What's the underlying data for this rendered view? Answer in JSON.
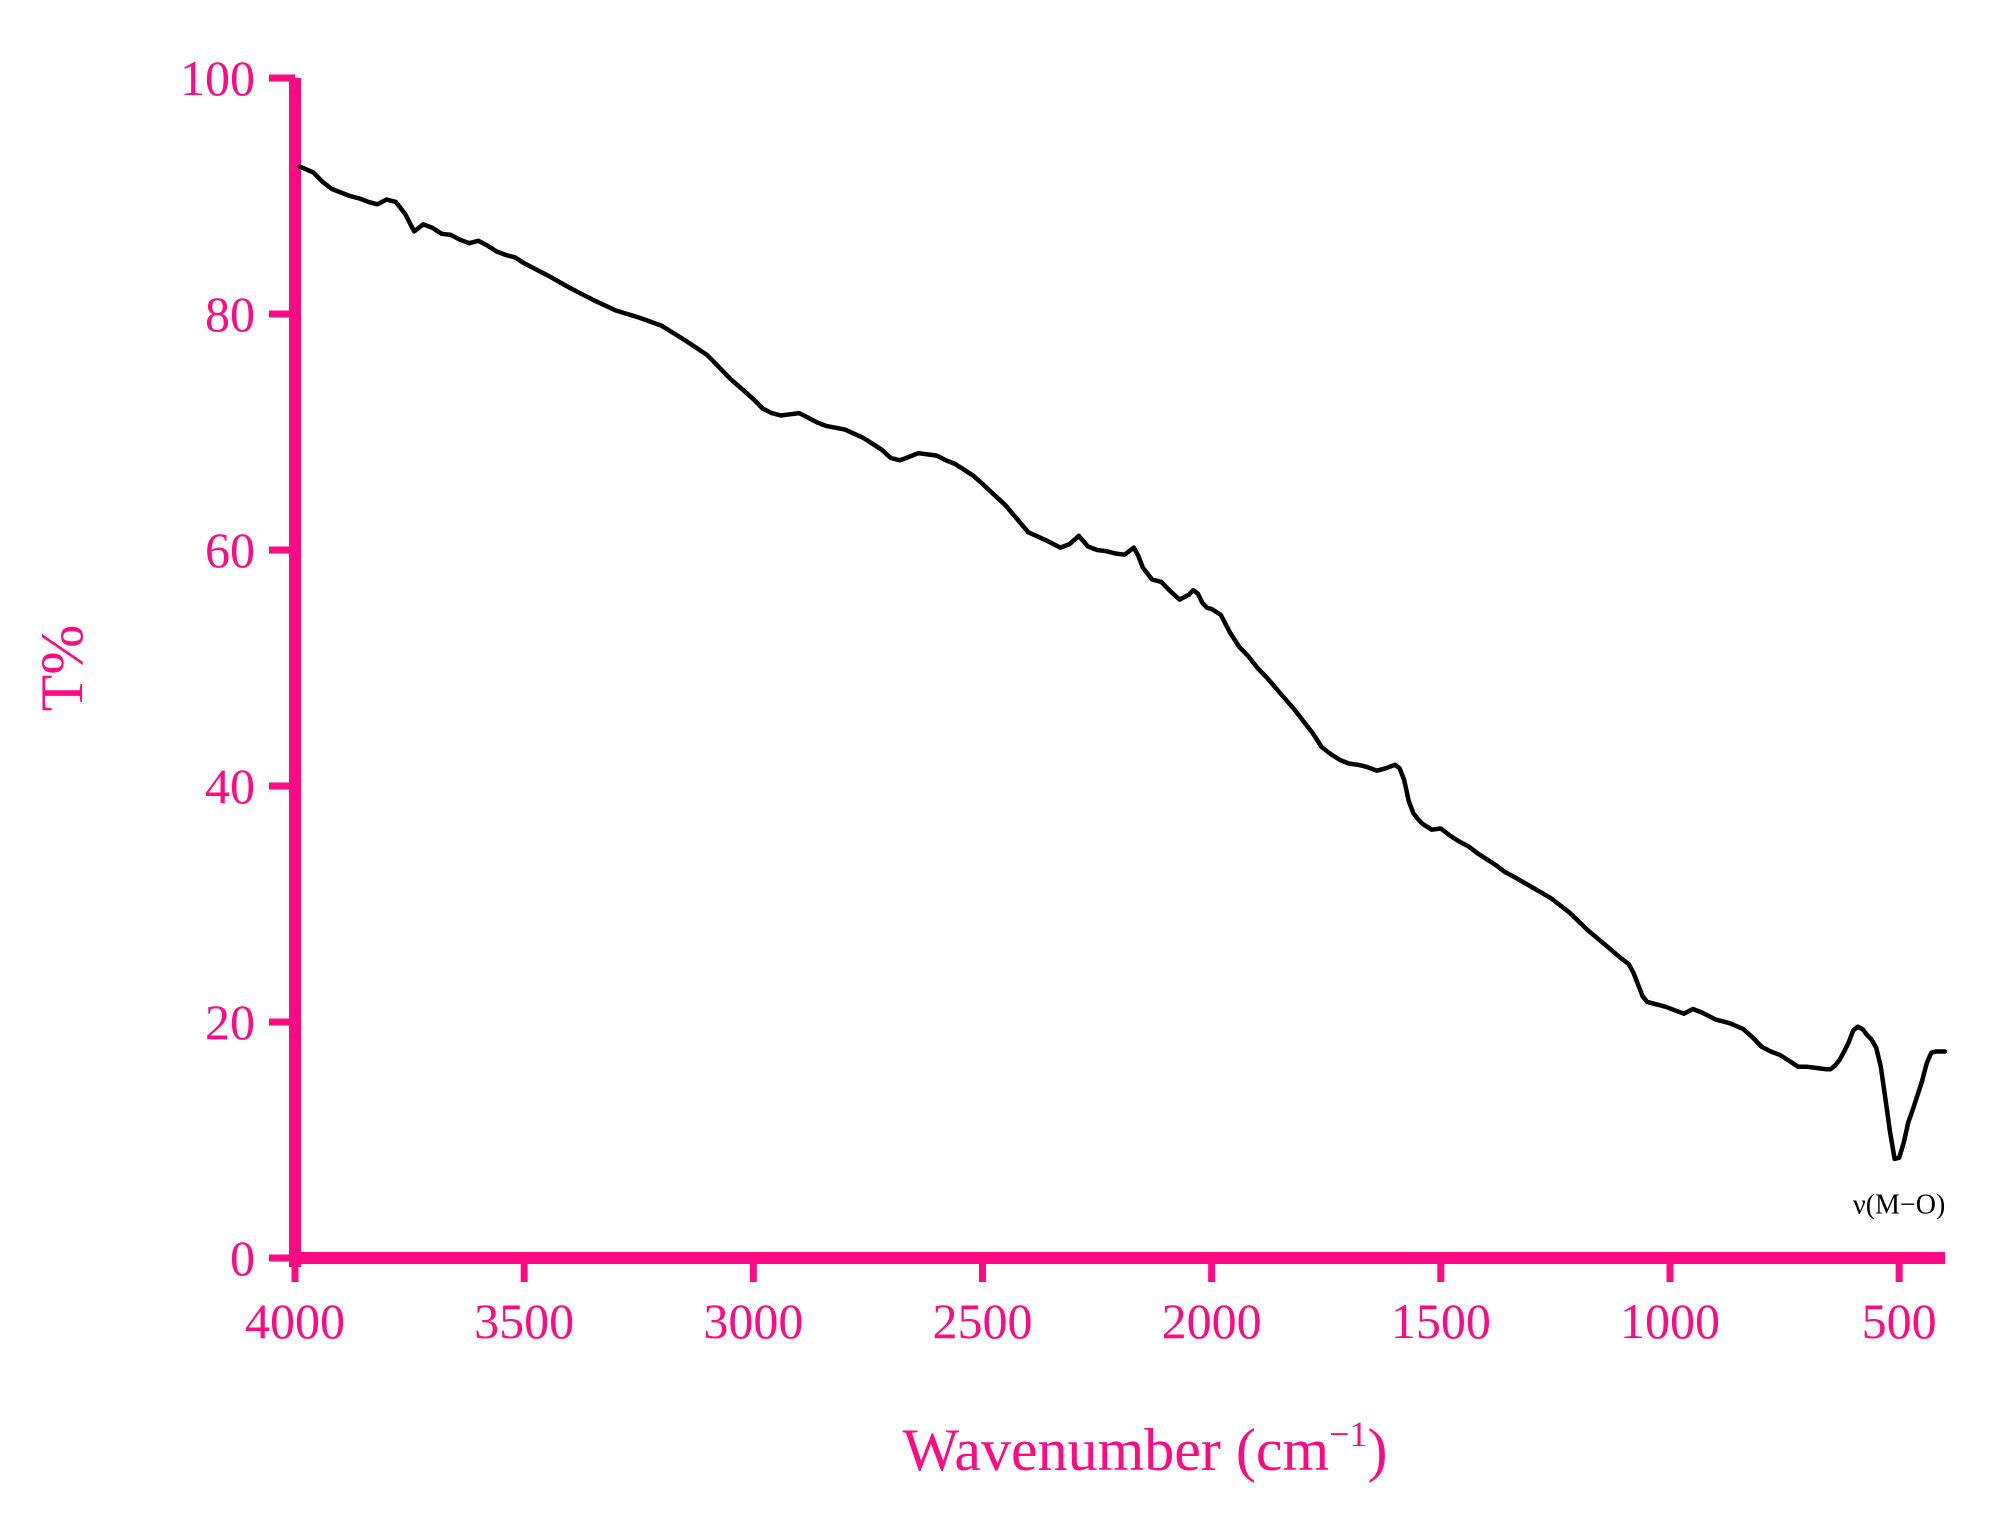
{
  "chart_data": {
    "type": "line",
    "title": "",
    "xlabel": "Wavenumber (cm",
    "xlabel_sup": "−1",
    "xlabel_close": ")",
    "ylabel": "T%",
    "xlim": [
      4000,
      400
    ],
    "ylim": [
      0,
      100
    ],
    "x_reversed": true,
    "grid": false,
    "legend": "none",
    "x_ticks": [
      4000,
      3500,
      3000,
      2500,
      2000,
      1500,
      1000,
      500
    ],
    "y_ticks": [
      0,
      20,
      40,
      60,
      80,
      100
    ],
    "annotation": {
      "text": "ν(M−O)",
      "x": 500,
      "y": 8
    },
    "colors": {
      "axis": "#ff0a84",
      "line": "#000000",
      "background": "#ffffff"
    },
    "series": [
      {
        "x": [
          3990,
          3960,
          3940,
          3920,
          3900,
          3880,
          3860,
          3840,
          3820,
          3800,
          3780,
          3760,
          3740,
          3720,
          3700,
          3680,
          3660,
          3640,
          3620,
          3600,
          3580,
          3560,
          3540,
          3520,
          3500,
          3450,
          3400,
          3350,
          3300,
          3250,
          3200,
          3150,
          3100,
          3050,
          3000,
          2980,
          2960,
          2940,
          2920,
          2900,
          2880,
          2860,
          2840,
          2800,
          2760,
          2720,
          2700,
          2680,
          2660,
          2640,
          2620,
          2600,
          2580,
          2560,
          2540,
          2520,
          2500,
          2450,
          2400,
          2360,
          2330,
          2310,
          2290,
          2270,
          2250,
          2230,
          2210,
          2190,
          2170,
          2160,
          2150,
          2130,
          2110,
          2090,
          2070,
          2050,
          2040,
          2030,
          2020,
          2010,
          2000,
          1980,
          1960,
          1940,
          1920,
          1900,
          1880,
          1860,
          1840,
          1820,
          1800,
          1780,
          1760,
          1740,
          1720,
          1700,
          1680,
          1660,
          1640,
          1620,
          1600,
          1590,
          1580,
          1570,
          1560,
          1550,
          1540,
          1520,
          1500,
          1480,
          1460,
          1440,
          1420,
          1400,
          1380,
          1360,
          1340,
          1300,
          1260,
          1220,
          1180,
          1140,
          1110,
          1090,
          1080,
          1070,
          1060,
          1050,
          1030,
          1010,
          990,
          970,
          950,
          930,
          900,
          870,
          840,
          820,
          800,
          780,
          760,
          740,
          720,
          700,
          680,
          660,
          650,
          640,
          630,
          620,
          610,
          600,
          590,
          580,
          570,
          560,
          550,
          540,
          530,
          520,
          510,
          500,
          490,
          480,
          470,
          460,
          450,
          440,
          430,
          420,
          410,
          400
        ],
        "y": [
          92.5,
          92,
          91.2,
          90.6,
          90.3,
          90,
          89.8,
          89.5,
          89.3,
          89.7,
          89.5,
          88.5,
          87,
          87.6,
          87.3,
          86.8,
          86.7,
          86.3,
          86,
          86.2,
          85.8,
          85.3,
          85,
          84.8,
          84.3,
          83.3,
          82.2,
          81.2,
          80.3,
          79.7,
          79,
          77.8,
          76.5,
          74.5,
          72.8,
          72,
          71.6,
          71.4,
          71.5,
          71.6,
          71.2,
          70.8,
          70.5,
          70.2,
          69.5,
          68.5,
          67.8,
          67.6,
          67.9,
          68.2,
          68.1,
          68,
          67.6,
          67.3,
          66.8,
          66.3,
          65.6,
          63.8,
          61.5,
          60.8,
          60.2,
          60.5,
          61.2,
          60.3,
          60,
          59.9,
          59.7,
          59.6,
          60.2,
          59.5,
          58.5,
          57.5,
          57.3,
          56.5,
          55.8,
          56.2,
          56.6,
          56.3,
          55.5,
          55.1,
          55,
          54.5,
          53,
          51.8,
          51,
          50,
          49.2,
          48.3,
          47.4,
          46.5,
          45.5,
          44.5,
          43.3,
          42.7,
          42.2,
          41.9,
          41.8,
          41.6,
          41.3,
          41.5,
          41.8,
          41.5,
          40.5,
          38.7,
          37.7,
          37.2,
          36.8,
          36.3,
          36.4,
          35.8,
          35.3,
          34.9,
          34.3,
          33.8,
          33.3,
          32.7,
          32.3,
          31.4,
          30.5,
          29.3,
          27.8,
          26.5,
          25.5,
          24.9,
          24.2,
          23.2,
          22.2,
          21.7,
          21.5,
          21.3,
          21,
          20.7,
          21.1,
          20.8,
          20.2,
          19.9,
          19.4,
          18.7,
          17.9,
          17.5,
          17.2,
          16.7,
          16.2,
          16.2,
          16.1,
          16,
          16,
          16.3,
          16.8,
          17.5,
          18.3,
          19.3,
          19.6,
          19.4,
          18.9,
          18.5,
          17.8,
          16.2,
          13.5,
          10.7,
          8.4,
          8.5,
          9.8,
          11.5,
          12.6,
          13.8,
          15,
          16.5,
          17.4,
          17.5,
          17.5,
          17.5
        ]
      }
    ]
  }
}
